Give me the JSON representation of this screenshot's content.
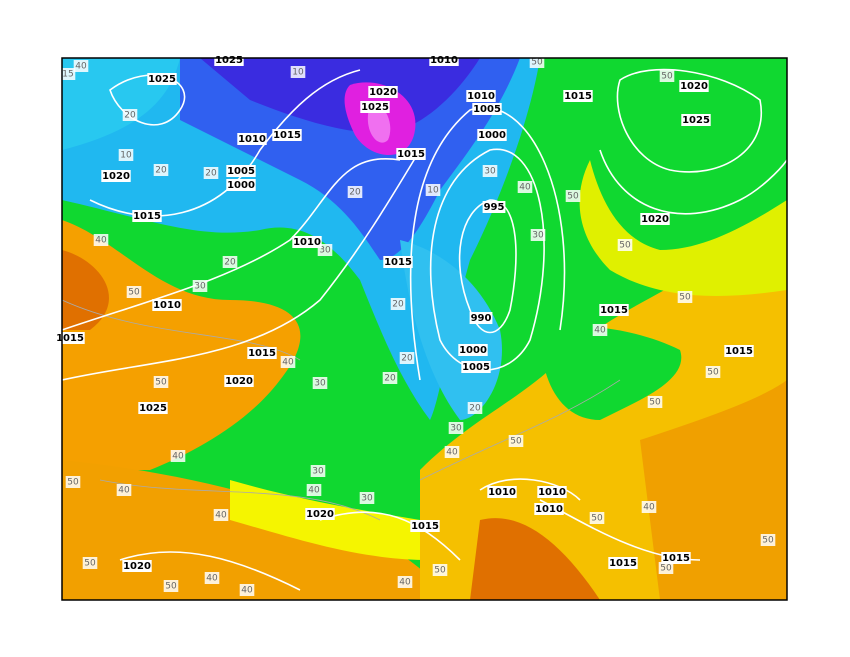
{
  "isobar_labels": [
    "1025",
    "1010",
    "1025",
    "1020",
    "1025",
    "1010",
    "1005",
    "1015",
    "1020",
    "1025",
    "1015",
    "1010",
    "1000",
    "1015",
    "1005",
    "1020",
    "1000",
    "995",
    "1015",
    "1020",
    "1010",
    "1015",
    "1010",
    "990",
    "1015",
    "1015",
    "1000",
    "1015",
    "1015",
    "1005",
    "1020",
    "1025",
    "1010",
    "1010",
    "1010",
    "1020",
    "1015",
    "1015",
    "1015",
    "1020"
  ],
  "thickness_labels": [
    "40",
    "15",
    "10",
    "50",
    "50",
    "20",
    "10",
    "20",
    "20",
    "30",
    "40",
    "50",
    "20",
    "10",
    "40",
    "20",
    "30",
    "30",
    "50",
    "20",
    "50",
    "30",
    "50",
    "40",
    "20",
    "40",
    "30",
    "20",
    "50",
    "50",
    "50",
    "20",
    "30",
    "40",
    "50",
    "40",
    "30",
    "40",
    "40",
    "50",
    "30",
    "50",
    "40",
    "40",
    "40",
    "50",
    "40",
    "40",
    "50",
    "50",
    "50",
    "50"
  ]
}
